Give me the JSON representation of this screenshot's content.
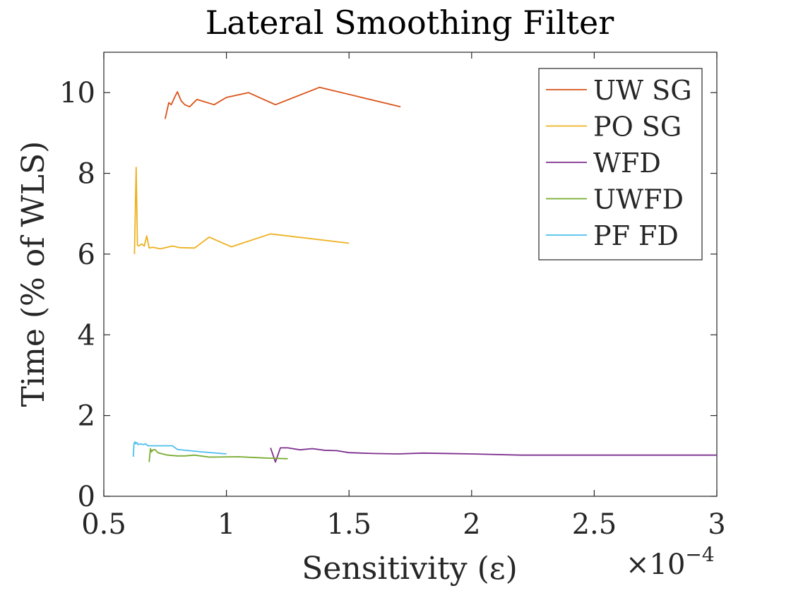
{
  "chart_data": {
    "type": "line",
    "title": "Lateral Smoothing Filter",
    "xlabel": "Sensitivity (ε)",
    "ylabel": "Time (% of WLS)",
    "x_multiplier_base": "×10",
    "x_multiplier_exp": "−4",
    "xlim": [
      0.5,
      3
    ],
    "ylim": [
      0,
      11
    ],
    "xticks": [
      0.5,
      1,
      1.5,
      2,
      2.5,
      3
    ],
    "xtick_labels": [
      "0.5",
      "1",
      "1.5",
      "2",
      "2.5",
      "3"
    ],
    "yticks": [
      0,
      2,
      4,
      6,
      8,
      10
    ],
    "ytick_labels": [
      "0",
      "2",
      "4",
      "6",
      "8",
      "10"
    ],
    "grid": false,
    "legend_position": "top-right",
    "series": [
      {
        "name": "UW SG",
        "color": "#D95319",
        "x": [
          0.75,
          0.765,
          0.775,
          0.79,
          0.8,
          0.815,
          0.83,
          0.85,
          0.88,
          0.95,
          1.0,
          1.09,
          1.2,
          1.38,
          1.71
        ],
        "y": [
          9.35,
          9.75,
          9.7,
          9.9,
          10.02,
          9.8,
          9.7,
          9.65,
          9.83,
          9.7,
          9.88,
          10.0,
          9.7,
          10.13,
          9.65
        ]
      },
      {
        "name": "PO SG",
        "color": "#EDB120",
        "x": [
          0.625,
          0.632,
          0.637,
          0.642,
          0.655,
          0.665,
          0.675,
          0.685,
          0.7,
          0.73,
          0.78,
          0.81,
          0.87,
          0.93,
          1.02,
          1.18,
          1.5
        ],
        "y": [
          6.0,
          8.15,
          6.22,
          6.2,
          6.25,
          6.2,
          6.45,
          6.15,
          6.17,
          6.13,
          6.2,
          6.16,
          6.15,
          6.42,
          6.18,
          6.5,
          6.27
        ]
      },
      {
        "name": "WFD",
        "color": "#7E2F8E",
        "x": [
          1.18,
          1.2,
          1.22,
          1.25,
          1.3,
          1.35,
          1.4,
          1.45,
          1.5,
          1.6,
          1.7,
          1.8,
          2.0,
          2.2,
          2.5,
          3.0
        ],
        "y": [
          1.2,
          0.85,
          1.2,
          1.2,
          1.15,
          1.18,
          1.14,
          1.13,
          1.08,
          1.06,
          1.05,
          1.07,
          1.05,
          1.02,
          1.02,
          1.02
        ]
      },
      {
        "name": "UWFD",
        "color": "#77AC30",
        "x": [
          0.685,
          0.69,
          0.695,
          0.7,
          0.71,
          0.72,
          0.74,
          0.76,
          0.8,
          0.83,
          0.87,
          0.93,
          1.05,
          1.15,
          1.25
        ],
        "y": [
          0.85,
          1.18,
          1.1,
          1.15,
          1.15,
          1.08,
          1.05,
          1.02,
          1.0,
          1.0,
          1.02,
          0.97,
          0.98,
          0.95,
          0.93
        ]
      },
      {
        "name": "PF FD",
        "color": "#4DBEEE",
        "x": [
          0.62,
          0.623,
          0.627,
          0.63,
          0.635,
          0.64,
          0.65,
          0.66,
          0.67,
          0.68,
          0.7,
          0.74,
          0.78,
          0.8,
          0.9,
          1.0
        ],
        "y": [
          0.98,
          1.3,
          1.35,
          1.3,
          1.33,
          1.28,
          1.3,
          1.28,
          1.3,
          1.25,
          1.25,
          1.25,
          1.25,
          1.16,
          1.1,
          1.05
        ]
      }
    ]
  }
}
